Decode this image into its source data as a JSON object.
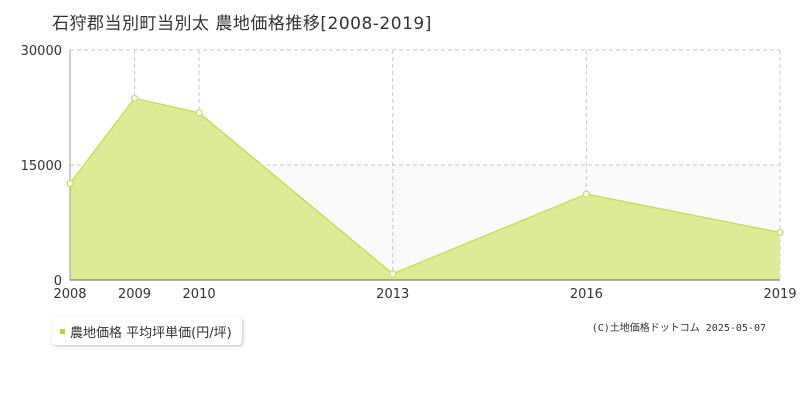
{
  "title": "石狩郡当別町当別太 農地価格推移[2008-2019]",
  "colors": {
    "area_fill": "#dcec96",
    "line": "#c5e05a",
    "marker_fill": "#ffffff",
    "plot_band": "#faf9fb",
    "grid": "#c8c8c8",
    "axis": "#999999",
    "legend_swatch": "#b5d639"
  },
  "legend": {
    "label": "農地価格 平均坪単価(円/坪)"
  },
  "copyright": "(C)土地価格ドットコム 2025-05-07",
  "chart_data": {
    "type": "area",
    "title": "石狩郡当別町当別太 農地価格推移[2008-2019]",
    "xlabel": "",
    "ylabel": "",
    "x": [
      2008,
      2009,
      2010,
      2013,
      2016,
      2019
    ],
    "x_tick_labels": [
      "2008",
      "2009",
      "2010",
      "2013",
      "2016",
      "2019"
    ],
    "y_ticks": [
      0,
      15000,
      30000
    ],
    "y_tick_labels": [
      "0",
      "15000",
      "30000"
    ],
    "ylim": [
      0,
      30000
    ],
    "grid": true,
    "legend_position": "bottom-left",
    "series": [
      {
        "name": "農地価格 平均坪単価(円/坪)",
        "values": [
          12600,
          23700,
          21800,
          800,
          11200,
          6200
        ]
      }
    ]
  }
}
